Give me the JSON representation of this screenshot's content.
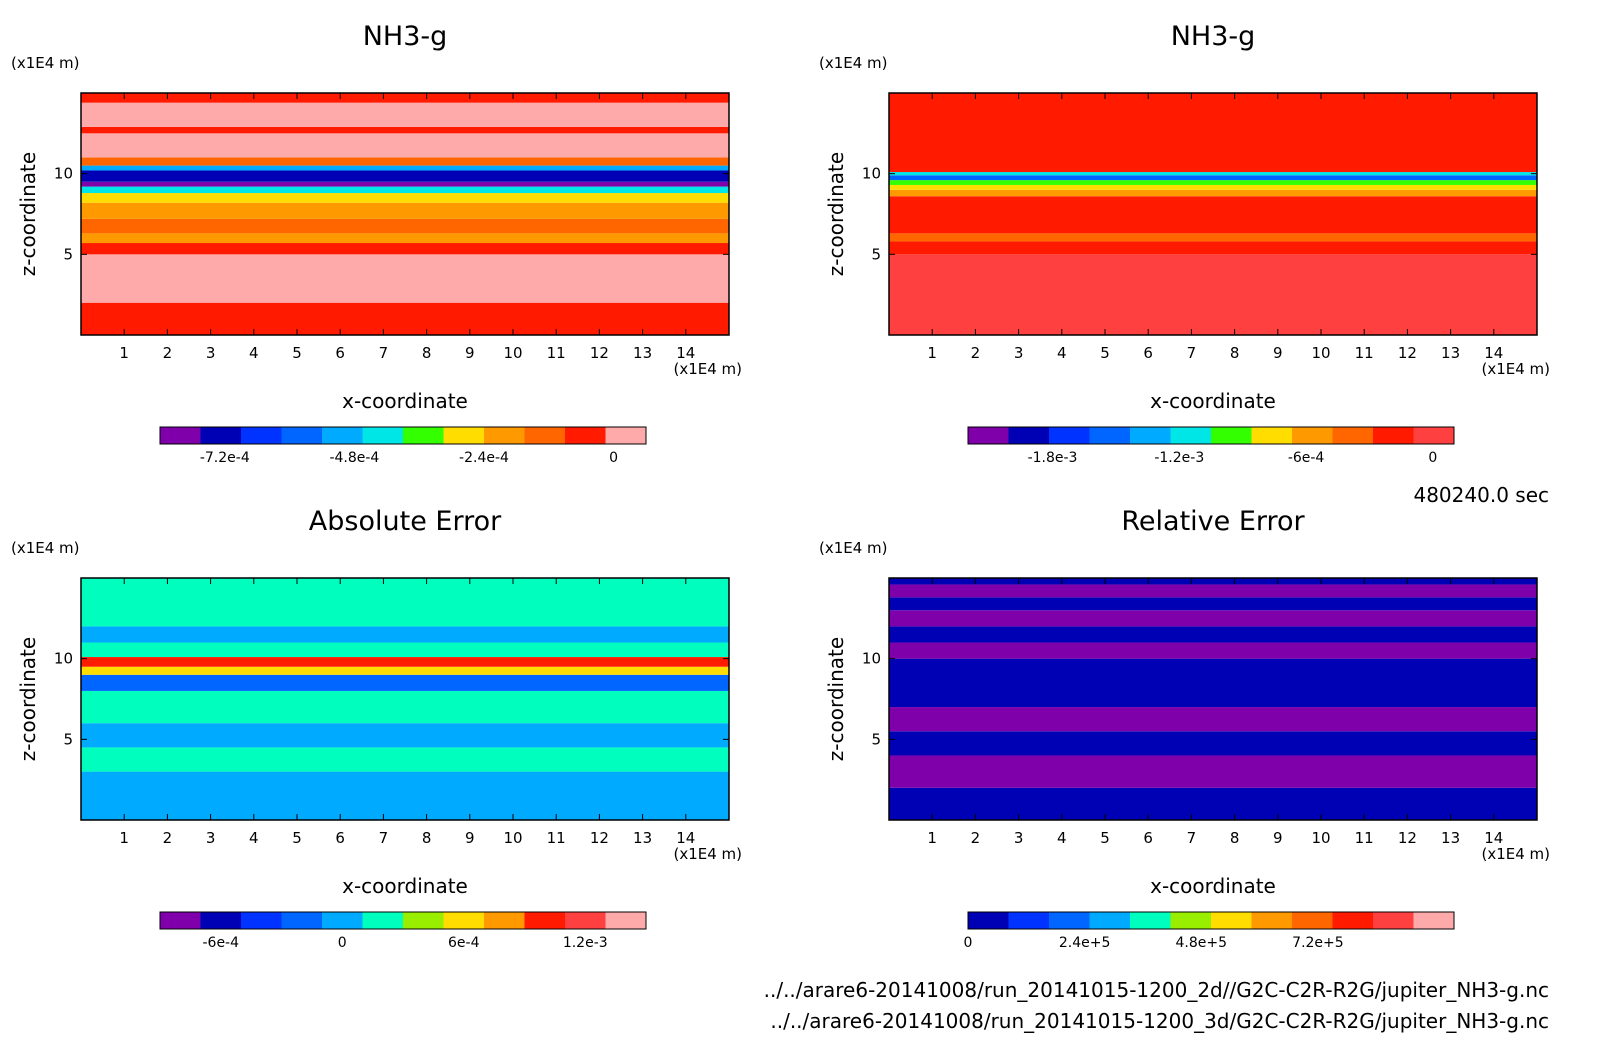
{
  "colors": {
    "purple": "#7f00aa",
    "navy": "#0000b4",
    "blue": "#0033ff",
    "mid_blue": "#0066ff",
    "sky_blue": "#00aaff",
    "cyan": "#00e6e6",
    "teal": "#00ffbf",
    "green": "#33ff00",
    "lime": "#99ee00",
    "yellow": "#ffdd00",
    "orange": "#ff9900",
    "dark_orange": "#ff6600",
    "red": "#ff1a00",
    "coral": "#ff4040",
    "pink": "#ffaaaa"
  },
  "footer": {
    "time": "480240.0 sec",
    "path1": "../../arare6-20141008/run_20141015-1200_2d//G2C-C2R-R2G/jupiter_NH3-g.nc",
    "path2": "../../arare6-20141008/run_20141015-1200_3d/G2C-C2R-R2G/jupiter_NH3-g.nc"
  },
  "chart_data": [
    {
      "type": "heatmap",
      "title": "NH3-g",
      "xlabel": "x-coordinate",
      "ylabel": "z-coordinate",
      "x_unit": "(x1E4 m)",
      "y_unit": "(x1E4 m)",
      "xticks": [
        "1",
        "2",
        "3",
        "4",
        "5",
        "6",
        "7",
        "8",
        "9",
        "10",
        "11",
        "12",
        "13",
        "14"
      ],
      "yticks": [
        "5",
        "10"
      ],
      "xlim": [
        0,
        15
      ],
      "ylim": [
        0,
        15
      ],
      "colorbar": {
        "colors": [
          "purple",
          "navy",
          "blue",
          "mid_blue",
          "sky_blue",
          "cyan",
          "green",
          "yellow",
          "orange",
          "dark_orange",
          "red",
          "pink"
        ],
        "range": [
          -0.00084,
          6e-05
        ],
        "ticks": [
          {
            "v": -0.00072,
            "label": "-7.2e-4"
          },
          {
            "v": -0.00048,
            "label": "-4.8e-4"
          },
          {
            "v": -0.00024,
            "label": "-2.4e-4"
          },
          {
            "v": 0,
            "label": "0"
          }
        ]
      },
      "bands": [
        [
          0,
          2,
          "red"
        ],
        [
          2,
          5,
          "pink"
        ],
        [
          5,
          5.7,
          "red"
        ],
        [
          5.7,
          6.3,
          "orange"
        ],
        [
          6.3,
          7.2,
          "dark_orange"
        ],
        [
          7.2,
          8.2,
          "orange"
        ],
        [
          8.2,
          8.8,
          "yellow"
        ],
        [
          8.8,
          9.2,
          "cyan"
        ],
        [
          9.2,
          9.5,
          "purple"
        ],
        [
          9.5,
          10.2,
          "navy"
        ],
        [
          10.2,
          10.5,
          "sky_blue"
        ],
        [
          10.5,
          11,
          "dark_orange"
        ],
        [
          11,
          12.5,
          "pink"
        ],
        [
          12.5,
          12.9,
          "red"
        ],
        [
          12.9,
          14.4,
          "pink"
        ],
        [
          14.4,
          15,
          "red"
        ]
      ]
    },
    {
      "type": "heatmap",
      "title": "NH3-g",
      "xlabel": "x-coordinate",
      "ylabel": "z-coordinate",
      "x_unit": "(x1E4 m)",
      "y_unit": "(x1E4 m)",
      "xticks": [
        "1",
        "2",
        "3",
        "4",
        "5",
        "6",
        "7",
        "8",
        "9",
        "10",
        "11",
        "12",
        "13",
        "14"
      ],
      "yticks": [
        "5",
        "10"
      ],
      "xlim": [
        0,
        15
      ],
      "ylim": [
        0,
        15
      ],
      "colorbar": {
        "colors": [
          "purple",
          "navy",
          "blue",
          "mid_blue",
          "sky_blue",
          "cyan",
          "green",
          "yellow",
          "orange",
          "dark_orange",
          "red",
          "coral"
        ],
        "range": [
          -0.0022,
          0.0001
        ],
        "ticks": [
          {
            "v": -0.0018,
            "label": "-1.8e-3"
          },
          {
            "v": -0.0012,
            "label": "-1.2e-3"
          },
          {
            "v": -0.0006,
            "label": "-6e-4"
          },
          {
            "v": 0,
            "label": "0"
          }
        ]
      },
      "bands": [
        [
          0,
          5,
          "coral"
        ],
        [
          5,
          5.8,
          "red"
        ],
        [
          5.8,
          6.3,
          "dark_orange"
        ],
        [
          6.3,
          8.6,
          "red"
        ],
        [
          8.6,
          9.0,
          "orange"
        ],
        [
          9.0,
          9.3,
          "yellow"
        ],
        [
          9.3,
          9.6,
          "green"
        ],
        [
          9.6,
          9.9,
          "mid_blue"
        ],
        [
          9.9,
          10.1,
          "cyan"
        ],
        [
          10.1,
          15,
          "red"
        ]
      ]
    },
    {
      "type": "heatmap",
      "title": "Absolute Error",
      "xlabel": "x-coordinate",
      "ylabel": "z-coordinate",
      "x_unit": "(x1E4 m)",
      "y_unit": "(x1E4 m)",
      "xticks": [
        "1",
        "2",
        "3",
        "4",
        "5",
        "6",
        "7",
        "8",
        "9",
        "10",
        "11",
        "12",
        "13",
        "14"
      ],
      "yticks": [
        "5",
        "10"
      ],
      "xlim": [
        0,
        15
      ],
      "ylim": [
        0,
        15
      ],
      "colorbar": {
        "colors": [
          "purple",
          "navy",
          "blue",
          "mid_blue",
          "sky_blue",
          "teal",
          "lime",
          "yellow",
          "orange",
          "red",
          "coral",
          "pink"
        ],
        "range": [
          -0.0009,
          0.0015
        ],
        "ticks": [
          {
            "v": -0.0006,
            "label": "-6e-4"
          },
          {
            "v": 0,
            "label": "0"
          },
          {
            "v": 0.0006,
            "label": "6e-4"
          },
          {
            "v": 0.0012,
            "label": "1.2e-3"
          }
        ]
      },
      "bands": [
        [
          0,
          3,
          "sky_blue"
        ],
        [
          3,
          4.5,
          "teal"
        ],
        [
          4.5,
          6,
          "sky_blue"
        ],
        [
          6,
          8,
          "teal"
        ],
        [
          8,
          9,
          "mid_blue"
        ],
        [
          9,
          9.5,
          "yellow"
        ],
        [
          9.5,
          10.1,
          "red"
        ],
        [
          10.1,
          11,
          "teal"
        ],
        [
          11,
          12,
          "sky_blue"
        ],
        [
          12,
          15,
          "teal"
        ]
      ]
    },
    {
      "type": "heatmap",
      "title": "Relative Error",
      "xlabel": "x-coordinate",
      "ylabel": "z-coordinate",
      "x_unit": "(x1E4 m)",
      "y_unit": "(x1E4 m)",
      "xticks": [
        "1",
        "2",
        "3",
        "4",
        "5",
        "6",
        "7",
        "8",
        "9",
        "10",
        "11",
        "12",
        "13",
        "14"
      ],
      "yticks": [
        "5",
        "10"
      ],
      "xlim": [
        0,
        15
      ],
      "ylim": [
        0,
        15
      ],
      "colorbar": {
        "colors": [
          "navy",
          "blue",
          "mid_blue",
          "sky_blue",
          "teal",
          "lime",
          "yellow",
          "orange",
          "dark_orange",
          "red",
          "coral",
          "pink"
        ],
        "range": [
          0,
          1000000.0
        ],
        "ticks": [
          {
            "v": 0,
            "label": "0"
          },
          {
            "v": 240000.0,
            "label": "2.4e+5"
          },
          {
            "v": 480000.0,
            "label": "4.8e+5"
          },
          {
            "v": 720000.0,
            "label": "7.2e+5"
          }
        ]
      },
      "bands": [
        [
          0,
          2,
          "navy"
        ],
        [
          2,
          4,
          "purple"
        ],
        [
          4,
          5.5,
          "navy"
        ],
        [
          5.5,
          7,
          "purple"
        ],
        [
          7,
          10,
          "navy"
        ],
        [
          10,
          11,
          "purple"
        ],
        [
          11,
          12,
          "navy"
        ],
        [
          12,
          13,
          "purple"
        ],
        [
          13,
          13.8,
          "navy"
        ],
        [
          13.8,
          14.6,
          "purple"
        ],
        [
          14.6,
          15,
          "navy"
        ]
      ]
    }
  ]
}
